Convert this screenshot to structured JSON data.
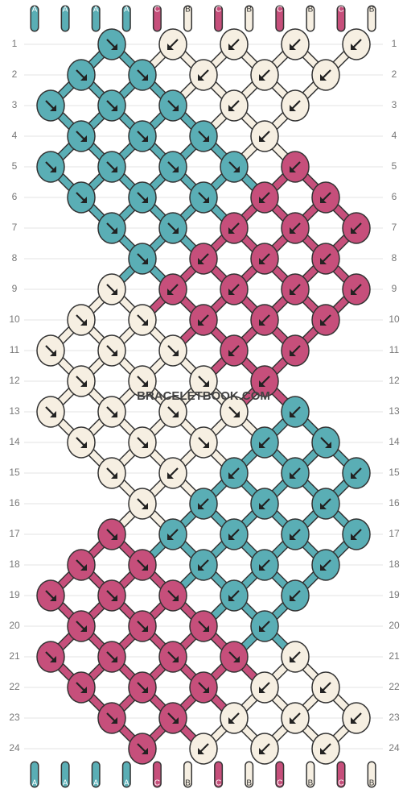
{
  "strings": [
    "A",
    "A",
    "A",
    "A",
    "C",
    "B",
    "C",
    "B",
    "C",
    "B",
    "C",
    "B"
  ],
  "string_colors": {
    "A": "T",
    "B": "C",
    "C": "P"
  },
  "palette": {
    "T": "#5aaeb5",
    "C": "#f6efe2",
    "P": "#c64f7b"
  },
  "watermark": "BRACELETBOOK.COM",
  "rows": [
    {
      "label": "1",
      "knots": [
        [
          1,
          "T",
          "r"
        ],
        [
          2,
          "C",
          "l"
        ],
        [
          3,
          "C",
          "l"
        ],
        [
          4,
          "C",
          "l"
        ],
        [
          5,
          "C",
          "l"
        ]
      ]
    },
    {
      "label": "2",
      "knots": [
        [
          0,
          "T",
          "r"
        ],
        [
          1,
          "T",
          "r"
        ],
        [
          2,
          "C",
          "l"
        ],
        [
          3,
          "C",
          "l"
        ],
        [
          4,
          "C",
          "l"
        ]
      ]
    },
    {
      "label": "3",
      "knots": [
        [
          0,
          "T",
          "r"
        ],
        [
          1,
          "T",
          "r"
        ],
        [
          2,
          "T",
          "r"
        ],
        [
          3,
          "C",
          "l"
        ],
        [
          4,
          "C",
          "l"
        ]
      ]
    },
    {
      "label": "4",
      "knots": [
        [
          0,
          "T",
          "r"
        ],
        [
          1,
          "T",
          "r"
        ],
        [
          2,
          "T",
          "r"
        ],
        [
          3,
          "C",
          "l"
        ]
      ]
    },
    {
      "label": "5",
      "knots": [
        [
          0,
          "T",
          "r"
        ],
        [
          1,
          "T",
          "r"
        ],
        [
          2,
          "T",
          "r"
        ],
        [
          3,
          "T",
          "r"
        ],
        [
          4,
          "P",
          "l"
        ]
      ]
    },
    {
      "label": "6",
      "knots": [
        [
          0,
          "T",
          "r"
        ],
        [
          1,
          "T",
          "r"
        ],
        [
          2,
          "T",
          "r"
        ],
        [
          3,
          "P",
          "l"
        ],
        [
          4,
          "P",
          "l"
        ]
      ]
    },
    {
      "label": "7",
      "knots": [
        [
          1,
          "T",
          "r"
        ],
        [
          2,
          "T",
          "r"
        ],
        [
          3,
          "P",
          "l"
        ],
        [
          4,
          "P",
          "l"
        ],
        [
          5,
          "P",
          "l"
        ]
      ]
    },
    {
      "label": "8",
      "knots": [
        [
          1,
          "T",
          "r"
        ],
        [
          2,
          "P",
          "l"
        ],
        [
          3,
          "P",
          "l"
        ],
        [
          4,
          "P",
          "l"
        ]
      ]
    },
    {
      "label": "9",
      "knots": [
        [
          1,
          "C",
          "r"
        ],
        [
          2,
          "P",
          "l"
        ],
        [
          3,
          "P",
          "l"
        ],
        [
          4,
          "P",
          "l"
        ],
        [
          5,
          "P",
          "l"
        ]
      ]
    },
    {
      "label": "10",
      "knots": [
        [
          0,
          "C",
          "r"
        ],
        [
          1,
          "C",
          "r"
        ],
        [
          2,
          "P",
          "l"
        ],
        [
          3,
          "P",
          "l"
        ],
        [
          4,
          "P",
          "l"
        ]
      ]
    },
    {
      "label": "11",
      "knots": [
        [
          0,
          "C",
          "r"
        ],
        [
          1,
          "C",
          "r"
        ],
        [
          2,
          "C",
          "r"
        ],
        [
          3,
          "P",
          "l"
        ],
        [
          4,
          "P",
          "l"
        ]
      ]
    },
    {
      "label": "12",
      "knots": [
        [
          0,
          "C",
          "r"
        ],
        [
          1,
          "C",
          "r"
        ],
        [
          2,
          "C",
          "r"
        ],
        [
          3,
          "P",
          "l"
        ]
      ]
    },
    {
      "label": "13",
      "knots": [
        [
          0,
          "C",
          "r"
        ],
        [
          1,
          "C",
          "r"
        ],
        [
          2,
          "C",
          "r"
        ],
        [
          3,
          "C",
          "r"
        ],
        [
          4,
          "T",
          "l"
        ]
      ]
    },
    {
      "label": "14",
      "knots": [
        [
          0,
          "C",
          "r"
        ],
        [
          1,
          "C",
          "r"
        ],
        [
          2,
          "C",
          "r"
        ],
        [
          3,
          "T",
          "l"
        ],
        [
          4,
          "T",
          "r"
        ]
      ]
    },
    {
      "label": "15",
      "knots": [
        [
          1,
          "C",
          "r"
        ],
        [
          2,
          "C",
          "l"
        ],
        [
          3,
          "T",
          "l"
        ],
        [
          4,
          "T",
          "l"
        ],
        [
          5,
          "T",
          "l"
        ]
      ]
    },
    {
      "label": "16",
      "knots": [
        [
          1,
          "C",
          "r"
        ],
        [
          2,
          "T",
          "l"
        ],
        [
          3,
          "T",
          "l"
        ],
        [
          4,
          "T",
          "l"
        ]
      ]
    },
    {
      "label": "17",
      "knots": [
        [
          1,
          "P",
          "r"
        ],
        [
          2,
          "T",
          "l"
        ],
        [
          3,
          "T",
          "l"
        ],
        [
          4,
          "T",
          "l"
        ],
        [
          5,
          "T",
          "l"
        ]
      ]
    },
    {
      "label": "18",
      "knots": [
        [
          0,
          "P",
          "r"
        ],
        [
          1,
          "P",
          "r"
        ],
        [
          2,
          "T",
          "l"
        ],
        [
          3,
          "T",
          "l"
        ],
        [
          4,
          "T",
          "l"
        ]
      ]
    },
    {
      "label": "19",
      "knots": [
        [
          0,
          "P",
          "r"
        ],
        [
          1,
          "P",
          "r"
        ],
        [
          2,
          "P",
          "r"
        ],
        [
          3,
          "T",
          "l"
        ],
        [
          4,
          "T",
          "l"
        ]
      ]
    },
    {
      "label": "20",
      "knots": [
        [
          0,
          "P",
          "r"
        ],
        [
          1,
          "P",
          "r"
        ],
        [
          2,
          "P",
          "r"
        ],
        [
          3,
          "T",
          "l"
        ]
      ]
    },
    {
      "label": "21",
      "knots": [
        [
          0,
          "P",
          "r"
        ],
        [
          1,
          "P",
          "r"
        ],
        [
          2,
          "P",
          "r"
        ],
        [
          3,
          "P",
          "r"
        ],
        [
          4,
          "C",
          "l"
        ]
      ]
    },
    {
      "label": "22",
      "knots": [
        [
          0,
          "P",
          "r"
        ],
        [
          1,
          "P",
          "r"
        ],
        [
          2,
          "P",
          "r"
        ],
        [
          3,
          "C",
          "l"
        ],
        [
          4,
          "C",
          "l"
        ]
      ]
    },
    {
      "label": "23",
      "knots": [
        [
          1,
          "P",
          "r"
        ],
        [
          2,
          "P",
          "r"
        ],
        [
          3,
          "C",
          "l"
        ],
        [
          4,
          "C",
          "l"
        ],
        [
          5,
          "C",
          "l"
        ]
      ]
    },
    {
      "label": "24",
      "knots": [
        [
          1,
          "P",
          "r"
        ],
        [
          2,
          "C",
          "l"
        ],
        [
          3,
          "C",
          "l"
        ],
        [
          4,
          "C",
          "l"
        ]
      ]
    }
  ]
}
